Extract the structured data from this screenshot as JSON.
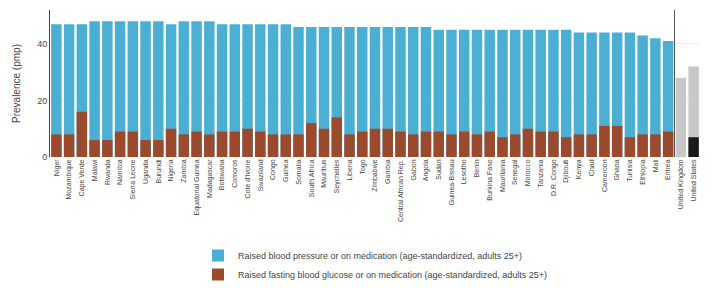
{
  "chart_data": {
    "type": "bar",
    "categories": [
      "Niger",
      "Mozambique",
      "Cape Verde",
      "Malawi",
      "Rwanda",
      "Namibia",
      "Sierra Leone",
      "Uganda",
      "Burundi",
      "Nigeria",
      "Zambia",
      "Equatorial Guinea",
      "Madagascar",
      "Botswana",
      "Comoros",
      "Cote d'Ivoire",
      "Swaziland",
      "Congo",
      "Guinea",
      "Somalia",
      "South Africa",
      "Mauritius",
      "Seychelles",
      "Liberia",
      "Togo",
      "Zimbabwe",
      "Gambia",
      "Central African Rep.",
      "Gabon",
      "Angola",
      "Sudan",
      "Guinea-Bissau",
      "Lesotho",
      "Benin",
      "Burkina Faso",
      "Mauritania",
      "Senegal",
      "Morocco",
      "Tanzania",
      "D.R. Congo",
      "Djibouti",
      "Kenya",
      "Chad",
      "Cameroon",
      "Ghana",
      "Tunisia",
      "Ethiopia",
      "Mali",
      "Eritrea",
      "United Kingdom",
      "United States"
    ],
    "series": [
      {
        "name": "Raised blood pressure or on medication (age-standardized, adults 25+)",
        "values": [
          47,
          47,
          47,
          48,
          48,
          48,
          48,
          48,
          48,
          47,
          48,
          48,
          48,
          47,
          47,
          47,
          47,
          47,
          47,
          46,
          46,
          46,
          46,
          46,
          46,
          46,
          46,
          46,
          46,
          46,
          45,
          45,
          45,
          45,
          45,
          45,
          45,
          45,
          45,
          45,
          45,
          44,
          44,
          44,
          44,
          44,
          43,
          42,
          41,
          28,
          32
        ],
        "colors": [
          "#4bafd4",
          "#4bafd4",
          "#4bafd4",
          "#4bafd4",
          "#4bafd4",
          "#4bafd4",
          "#4bafd4",
          "#4bafd4",
          "#4bafd4",
          "#4bafd4",
          "#4bafd4",
          "#4bafd4",
          "#4bafd4",
          "#4bafd4",
          "#4bafd4",
          "#4bafd4",
          "#4bafd4",
          "#4bafd4",
          "#4bafd4",
          "#4bafd4",
          "#4bafd4",
          "#4bafd4",
          "#4bafd4",
          "#4bafd4",
          "#4bafd4",
          "#4bafd4",
          "#4bafd4",
          "#4bafd4",
          "#4bafd4",
          "#4bafd4",
          "#4bafd4",
          "#4bafd4",
          "#4bafd4",
          "#4bafd4",
          "#4bafd4",
          "#4bafd4",
          "#4bafd4",
          "#4bafd4",
          "#4bafd4",
          "#4bafd4",
          "#4bafd4",
          "#4bafd4",
          "#4bafd4",
          "#4bafd4",
          "#4bafd4",
          "#4bafd4",
          "#4bafd4",
          "#4bafd4",
          "#4bafd4",
          "#c8c8c8",
          "#c8c8c8"
        ]
      },
      {
        "name": "Raised fasting blood glucose or on medication (age-standardized, adults 25+)",
        "values": [
          8,
          8,
          16,
          6,
          6,
          9,
          9,
          6,
          6,
          10,
          8,
          9,
          8,
          9,
          9,
          10,
          9,
          8,
          8,
          8,
          12,
          10,
          14,
          8,
          9,
          10,
          10,
          9,
          8,
          9,
          9,
          8,
          9,
          8,
          9,
          7,
          8,
          10,
          9,
          9,
          7,
          8,
          8,
          11,
          11,
          7,
          8,
          8,
          9,
          0,
          7
        ],
        "colors": [
          "#9b4a2e",
          "#9b4a2e",
          "#9b4a2e",
          "#9b4a2e",
          "#9b4a2e",
          "#9b4a2e",
          "#9b4a2e",
          "#9b4a2e",
          "#9b4a2e",
          "#9b4a2e",
          "#9b4a2e",
          "#9b4a2e",
          "#9b4a2e",
          "#9b4a2e",
          "#9b4a2e",
          "#9b4a2e",
          "#9b4a2e",
          "#9b4a2e",
          "#9b4a2e",
          "#9b4a2e",
          "#9b4a2e",
          "#9b4a2e",
          "#9b4a2e",
          "#9b4a2e",
          "#9b4a2e",
          "#9b4a2e",
          "#9b4a2e",
          "#9b4a2e",
          "#9b4a2e",
          "#9b4a2e",
          "#9b4a2e",
          "#9b4a2e",
          "#9b4a2e",
          "#9b4a2e",
          "#9b4a2e",
          "#9b4a2e",
          "#9b4a2e",
          "#9b4a2e",
          "#9b4a2e",
          "#9b4a2e",
          "#9b4a2e",
          "#9b4a2e",
          "#9b4a2e",
          "#9b4a2e",
          "#9b4a2e",
          "#9b4a2e",
          "#9b4a2e",
          "#9b4a2e",
          "#9b4a2e",
          "#1a1a1a",
          "#1a1a1a"
        ]
      }
    ],
    "ylabel": "Prevalence (pmp)",
    "ylim": [
      0,
      52
    ],
    "yticks": [
      0,
      20,
      40
    ],
    "grid": true,
    "stacked": false,
    "legend": "bottom"
  }
}
